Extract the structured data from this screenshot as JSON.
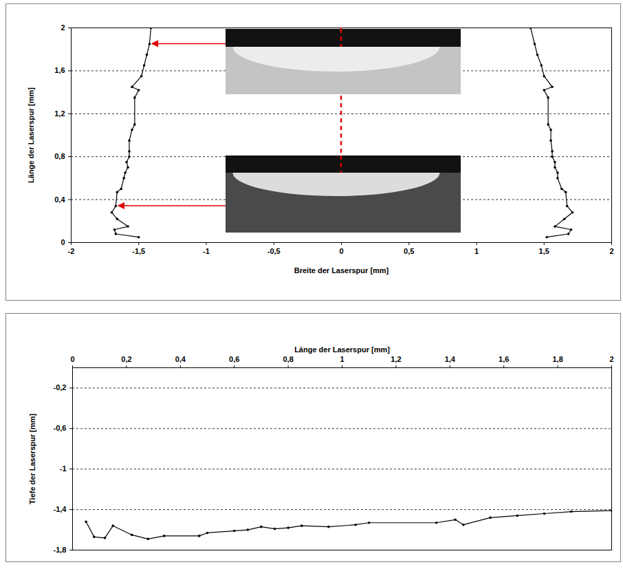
{
  "chart_data": [
    {
      "type": "line",
      "xlabel": "Breite der Laserspur [mm]",
      "ylabel": "Länge der Laserspur [mm]",
      "xlim": [
        -2,
        2
      ],
      "xticks": [
        -2,
        {
          "value": -1.5,
          "label": "-1,5"
        },
        -1,
        {
          "value": -0.5,
          "label": "-0,5"
        },
        0,
        {
          "value": 0.5,
          "label": "0,5"
        },
        1,
        {
          "value": 1.5,
          "label": "1,5"
        },
        2
      ],
      "ylim": [
        0,
        2
      ],
      "yticks": [
        0,
        {
          "value": 0.4,
          "label": "0,4"
        },
        {
          "value": 0.8,
          "label": "0,8"
        },
        {
          "value": 1.2,
          "label": "1,2"
        },
        {
          "value": 1.6,
          "label": "1,6"
        },
        2
      ],
      "grid": true,
      "series": [
        {
          "color": "#000000",
          "marker": "dot",
          "x": [
            -1.5,
            -1.67,
            -1.68,
            -1.58,
            -1.66,
            -1.7,
            -1.67,
            -1.66,
            -1.63,
            -1.61,
            -1.6,
            -1.58,
            -1.59,
            -1.57,
            -1.57,
            -1.57,
            -1.55,
            -1.53,
            -1.53,
            -1.5,
            -1.55,
            -1.48,
            -1.46,
            -1.44,
            -1.42,
            -1.41
          ],
          "y": [
            0.05,
            0.08,
            0.12,
            0.15,
            0.22,
            0.28,
            0.34,
            0.47,
            0.5,
            0.6,
            0.65,
            0.7,
            0.75,
            0.8,
            0.85,
            0.95,
            1.05,
            1.1,
            1.35,
            1.42,
            1.45,
            1.55,
            1.65,
            1.75,
            1.85,
            2.0
          ]
        },
        {
          "color": "#000000",
          "marker": "dot",
          "x": [
            1.52,
            1.68,
            1.7,
            1.58,
            1.65,
            1.71,
            1.67,
            1.66,
            1.63,
            1.6,
            1.6,
            1.58,
            1.58,
            1.56,
            1.56,
            1.55,
            1.55,
            1.53,
            1.53,
            1.5,
            1.56,
            1.5,
            1.48,
            1.45,
            1.43,
            1.4
          ],
          "y": [
            0.05,
            0.08,
            0.12,
            0.15,
            0.22,
            0.28,
            0.34,
            0.47,
            0.5,
            0.6,
            0.65,
            0.7,
            0.75,
            0.8,
            0.85,
            0.95,
            1.05,
            1.1,
            1.35,
            1.42,
            1.45,
            1.55,
            1.65,
            1.75,
            1.85,
            2.0
          ]
        }
      ]
    },
    {
      "type": "line",
      "xlabel": "Länge der Laserspur [mm]",
      "ylabel": "Tiefe der Laserspur [mm]",
      "xlim": [
        0,
        2
      ],
      "xticks": [
        0,
        {
          "value": 0.2,
          "label": "0,2"
        },
        {
          "value": 0.4,
          "label": "0,4"
        },
        {
          "value": 0.6,
          "label": "0,6"
        },
        {
          "value": 0.8,
          "label": "0,8"
        },
        1,
        {
          "value": 1.2,
          "label": "1,2"
        },
        {
          "value": 1.4,
          "label": "1,4"
        },
        {
          "value": 1.6,
          "label": "1,6"
        },
        {
          "value": 1.8,
          "label": "1,8"
        },
        2
      ],
      "ylim": [
        -1.8,
        0
      ],
      "yticks": [
        {
          "value": -0.2,
          "label": "-0,2"
        },
        {
          "value": -0.6,
          "label": "-0,6"
        },
        -1,
        {
          "value": -1.4,
          "label": "-1,4"
        },
        {
          "value": -1.8,
          "label": "-1,8"
        }
      ],
      "grid": true,
      "series": [
        {
          "color": "#000000",
          "marker": "dot",
          "x": [
            0.05,
            0.08,
            0.12,
            0.15,
            0.22,
            0.28,
            0.34,
            0.47,
            0.5,
            0.6,
            0.65,
            0.7,
            0.75,
            0.8,
            0.85,
            0.95,
            1.05,
            1.1,
            1.35,
            1.42,
            1.45,
            1.55,
            1.65,
            1.75,
            1.85,
            2.0
          ],
          "y": [
            -1.52,
            -1.67,
            -1.68,
            -1.56,
            -1.65,
            -1.69,
            -1.66,
            -1.66,
            -1.63,
            -1.61,
            -1.6,
            -1.57,
            -1.59,
            -1.58,
            -1.56,
            -1.57,
            -1.55,
            -1.53,
            -1.53,
            -1.5,
            -1.55,
            -1.48,
            -1.46,
            -1.44,
            -1.42,
            -1.41
          ]
        }
      ]
    }
  ]
}
